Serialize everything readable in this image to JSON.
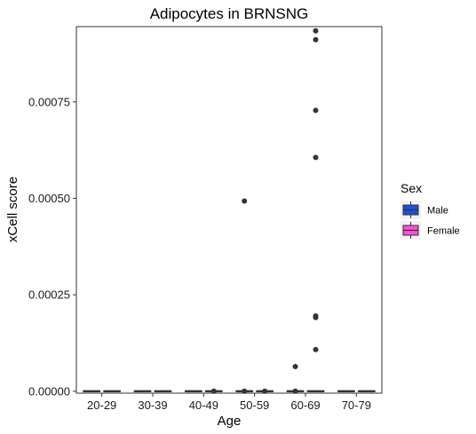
{
  "chart_data": {
    "type": "boxplot",
    "title": "Adipocytes in BRNSNG",
    "xlabel": "Age",
    "ylabel": "xCell score",
    "ylim": [
      -5e-06,
      0.000945
    ],
    "yticks": [
      0.0,
      0.00025,
      0.0005,
      0.00075
    ],
    "ytick_labels": [
      "0.00000",
      "0.00025",
      "0.00050",
      "0.00075"
    ],
    "categories": [
      "20-29",
      "30-39",
      "40-49",
      "50-59",
      "60-69",
      "70-79"
    ],
    "grid": false,
    "legend": {
      "title": "Sex",
      "position": "right",
      "entries": [
        {
          "name": "Male",
          "color": "#1f4fe0"
        },
        {
          "name": "Female",
          "color": "#ff4fd8"
        }
      ]
    },
    "series": [
      {
        "name": "Male",
        "color": "#1f4fe0",
        "boxes": [
          {
            "category": "20-29",
            "q1": 0,
            "median": 0,
            "q3": 0,
            "whisker_low": 0,
            "whisker_high": 0,
            "outliers": []
          },
          {
            "category": "30-39",
            "q1": 0,
            "median": 0,
            "q3": 0,
            "whisker_low": 0,
            "whisker_high": 0,
            "outliers": []
          },
          {
            "category": "40-49",
            "q1": 0,
            "median": 0,
            "q3": 0,
            "whisker_low": 0,
            "whisker_high": 0,
            "outliers": []
          },
          {
            "category": "50-59",
            "q1": 0,
            "median": 0,
            "q3": 0,
            "whisker_low": 0,
            "whisker_high": 0,
            "outliers": [
              3e-07,
              0.000493
            ]
          },
          {
            "category": "60-69",
            "q1": 0,
            "median": 0,
            "q3": 0,
            "whisker_low": 0,
            "whisker_high": 0,
            "outliers": [
              3e-07,
              6.4e-05
            ]
          },
          {
            "category": "70-79",
            "q1": 0,
            "median": 0,
            "q3": 0,
            "whisker_low": 0,
            "whisker_high": 0,
            "outliers": []
          }
        ]
      },
      {
        "name": "Female",
        "color": "#ff4fd8",
        "boxes": [
          {
            "category": "20-29",
            "q1": 0,
            "median": 0,
            "q3": 0,
            "whisker_low": 0,
            "whisker_high": 0,
            "outliers": []
          },
          {
            "category": "30-39",
            "q1": 0,
            "median": 0,
            "q3": 0,
            "whisker_low": 0,
            "whisker_high": 0,
            "outliers": []
          },
          {
            "category": "40-49",
            "q1": 0,
            "median": 0,
            "q3": 0,
            "whisker_low": 0,
            "whisker_high": 0,
            "outliers": [
              3e-07
            ]
          },
          {
            "category": "50-59",
            "q1": 0,
            "median": 0,
            "q3": 0,
            "whisker_low": 0,
            "whisker_high": 0,
            "outliers": [
              3e-07
            ]
          },
          {
            "category": "60-69",
            "q1": 0,
            "median": 0,
            "q3": 0,
            "whisker_low": 0,
            "whisker_high": 0,
            "outliers": [
              0.000108,
              0.000191,
              0.000195,
              0.000606,
              0.000728,
              0.000911,
              0.000934
            ]
          },
          {
            "category": "70-79",
            "q1": 0,
            "median": 0,
            "q3": 0,
            "whisker_low": 0,
            "whisker_high": 0,
            "outliers": []
          }
        ]
      }
    ]
  }
}
